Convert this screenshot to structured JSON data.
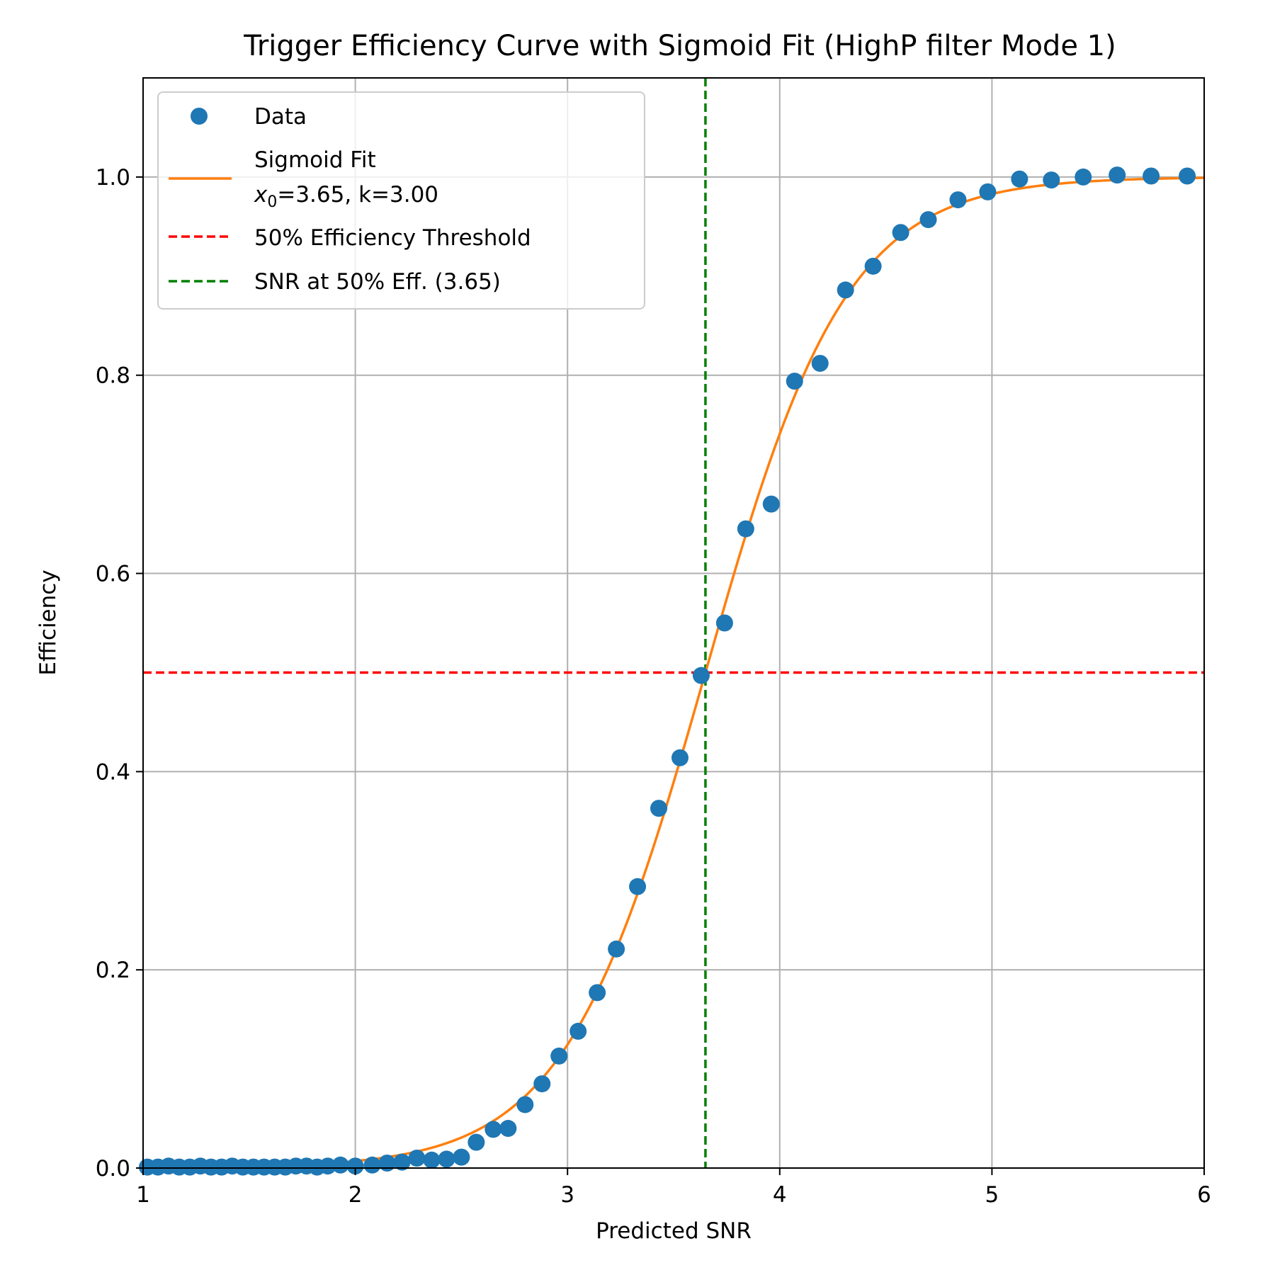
{
  "chart_data": {
    "type": "scatter",
    "title": "Trigger Efficiency Curve with Sigmoid Fit (HighP filter Mode 1)",
    "xlabel": "Predicted SNR",
    "ylabel": "Efficiency",
    "xlim": [
      1,
      6
    ],
    "ylim": [
      0,
      1.1
    ],
    "x_ticks": [
      1,
      2,
      3,
      4,
      5,
      6
    ],
    "x_tick_labels": [
      "1",
      "2",
      "3",
      "4",
      "5",
      "6"
    ],
    "y_ticks": [
      0.0,
      0.2,
      0.4,
      0.6,
      0.8,
      1.0
    ],
    "y_tick_labels": [
      "0.0",
      "0.2",
      "0.4",
      "0.6",
      "0.8",
      "1.0"
    ],
    "grid": true,
    "legend_position": "top-left",
    "series": [
      {
        "name": "Data",
        "kind": "scatter",
        "color": "#1f77b4",
        "x": [
          1.02,
          1.07,
          1.12,
          1.17,
          1.22,
          1.27,
          1.32,
          1.37,
          1.42,
          1.47,
          1.52,
          1.57,
          1.62,
          1.67,
          1.72,
          1.77,
          1.82,
          1.87,
          1.93,
          2.0,
          2.08,
          2.15,
          2.22,
          2.29,
          2.36,
          2.43,
          2.5,
          2.57,
          2.65,
          2.72,
          2.8,
          2.88,
          2.96,
          3.05,
          3.14,
          3.23,
          3.33,
          3.43,
          3.53,
          3.63,
          3.74,
          3.84,
          3.96,
          4.07,
          4.19,
          4.31,
          4.44,
          4.57,
          4.7,
          4.84,
          4.98,
          5.13,
          5.28,
          5.43,
          5.59,
          5.75,
          5.92
        ],
        "y": [
          0.001,
          0.001,
          0.002,
          0.001,
          0.001,
          0.002,
          0.001,
          0.001,
          0.002,
          0.001,
          0.001,
          0.001,
          0.001,
          0.001,
          0.002,
          0.002,
          0.001,
          0.002,
          0.003,
          0.002,
          0.003,
          0.005,
          0.006,
          0.01,
          0.008,
          0.009,
          0.011,
          0.026,
          0.039,
          0.04,
          0.064,
          0.085,
          0.113,
          0.138,
          0.177,
          0.221,
          0.284,
          0.363,
          0.414,
          0.497,
          0.55,
          0.645,
          0.67,
          0.794,
          0.812,
          0.886,
          0.91,
          0.944,
          0.957,
          0.977,
          0.985,
          0.998,
          0.997,
          1.0,
          1.002,
          1.001,
          1.001
        ]
      },
      {
        "name": "Sigmoid Fit",
        "kind": "line",
        "color": "#ff7f0e",
        "function": "1 / (1 + exp(-k * (x - x0)))",
        "params": {
          "x0": 3.65,
          "k": 3.0
        }
      },
      {
        "name": "50% Efficiency Threshold",
        "kind": "hline",
        "color": "#ff0000",
        "y": 0.5
      },
      {
        "name": "SNR at 50% Eff. (3.65)",
        "kind": "vline",
        "color": "#008000",
        "x": 3.65
      }
    ],
    "legend": {
      "data_label": "Data",
      "fit_label_line1": "Sigmoid Fit",
      "fit_label_x": "x",
      "fit_label_sub": "0",
      "fit_label_rest": "=3.65, k=3.00",
      "threshold_label": "50% Efficiency Threshold",
      "snr_label": "SNR at 50% Eff. (3.65)"
    }
  }
}
